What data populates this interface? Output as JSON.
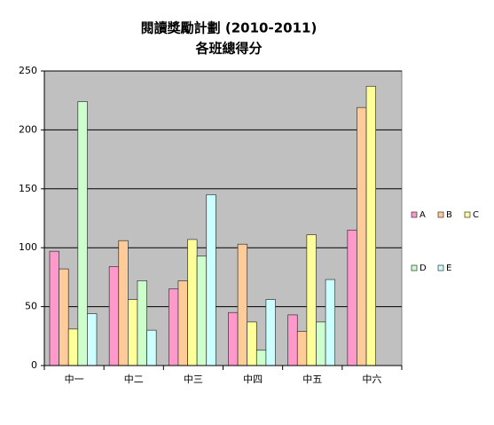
{
  "chart_data": {
    "type": "bar",
    "title": "閱讀獎勵計劃 (2010-2011)",
    "subtitle": "各班總得分",
    "categories": [
      "中一",
      "中二",
      "中三",
      "中四",
      "中五",
      "中六"
    ],
    "series": [
      {
        "name": "A",
        "color": "#ff99cc",
        "values": [
          97,
          84,
          65,
          45,
          43,
          115
        ]
      },
      {
        "name": "B",
        "color": "#ffcc99",
        "values": [
          82,
          106,
          72,
          103,
          29,
          219
        ]
      },
      {
        "name": "C",
        "color": "#ffff99",
        "values": [
          31,
          56,
          107,
          37,
          111,
          237
        ]
      },
      {
        "name": "D",
        "color": "#ccffcc",
        "values": [
          224,
          72,
          93,
          13,
          37,
          null
        ]
      },
      {
        "name": "E",
        "color": "#ccffff",
        "values": [
          44,
          30,
          145,
          56,
          73,
          null
        ]
      }
    ],
    "ylim": [
      0,
      250
    ],
    "yticks": [
      0,
      50,
      100,
      150,
      200,
      250
    ],
    "grid": true,
    "legend": "right"
  }
}
